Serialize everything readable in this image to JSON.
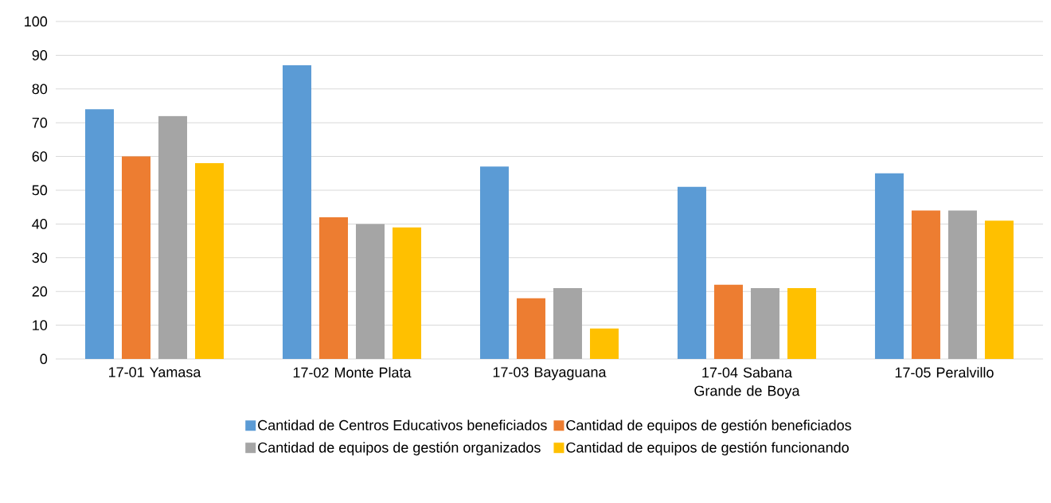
{
  "chart_data": {
    "type": "bar",
    "categories": [
      "17-01 Yamasa",
      "17-02 Monte Plata",
      "17-03 Bayaguana",
      "17-04 Sabana Grande de Boya",
      "17-05 Peralvillo"
    ],
    "series": [
      {
        "name": "Cantidad de Centros Educativos beneficiados",
        "color": "#5b9bd5",
        "values": [
          74,
          87,
          57,
          51,
          55
        ]
      },
      {
        "name": "Cantidad de equipos de gestión beneficiados",
        "color": "#ed7d31",
        "values": [
          60,
          42,
          18,
          22,
          44
        ]
      },
      {
        "name": "Cantidad de equipos de gestión organizados",
        "color": "#a5a5a5",
        "values": [
          72,
          40,
          21,
          21,
          44
        ]
      },
      {
        "name": "Cantidad de equipos de gestión funcionando",
        "color": "#ffc000",
        "values": [
          58,
          39,
          9,
          21,
          41
        ]
      }
    ],
    "ylim": [
      0,
      100
    ],
    "yticks": [
      0,
      10,
      20,
      30,
      40,
      50,
      60,
      70,
      80,
      90,
      100
    ],
    "grid": "y",
    "legend": "bottom"
  }
}
